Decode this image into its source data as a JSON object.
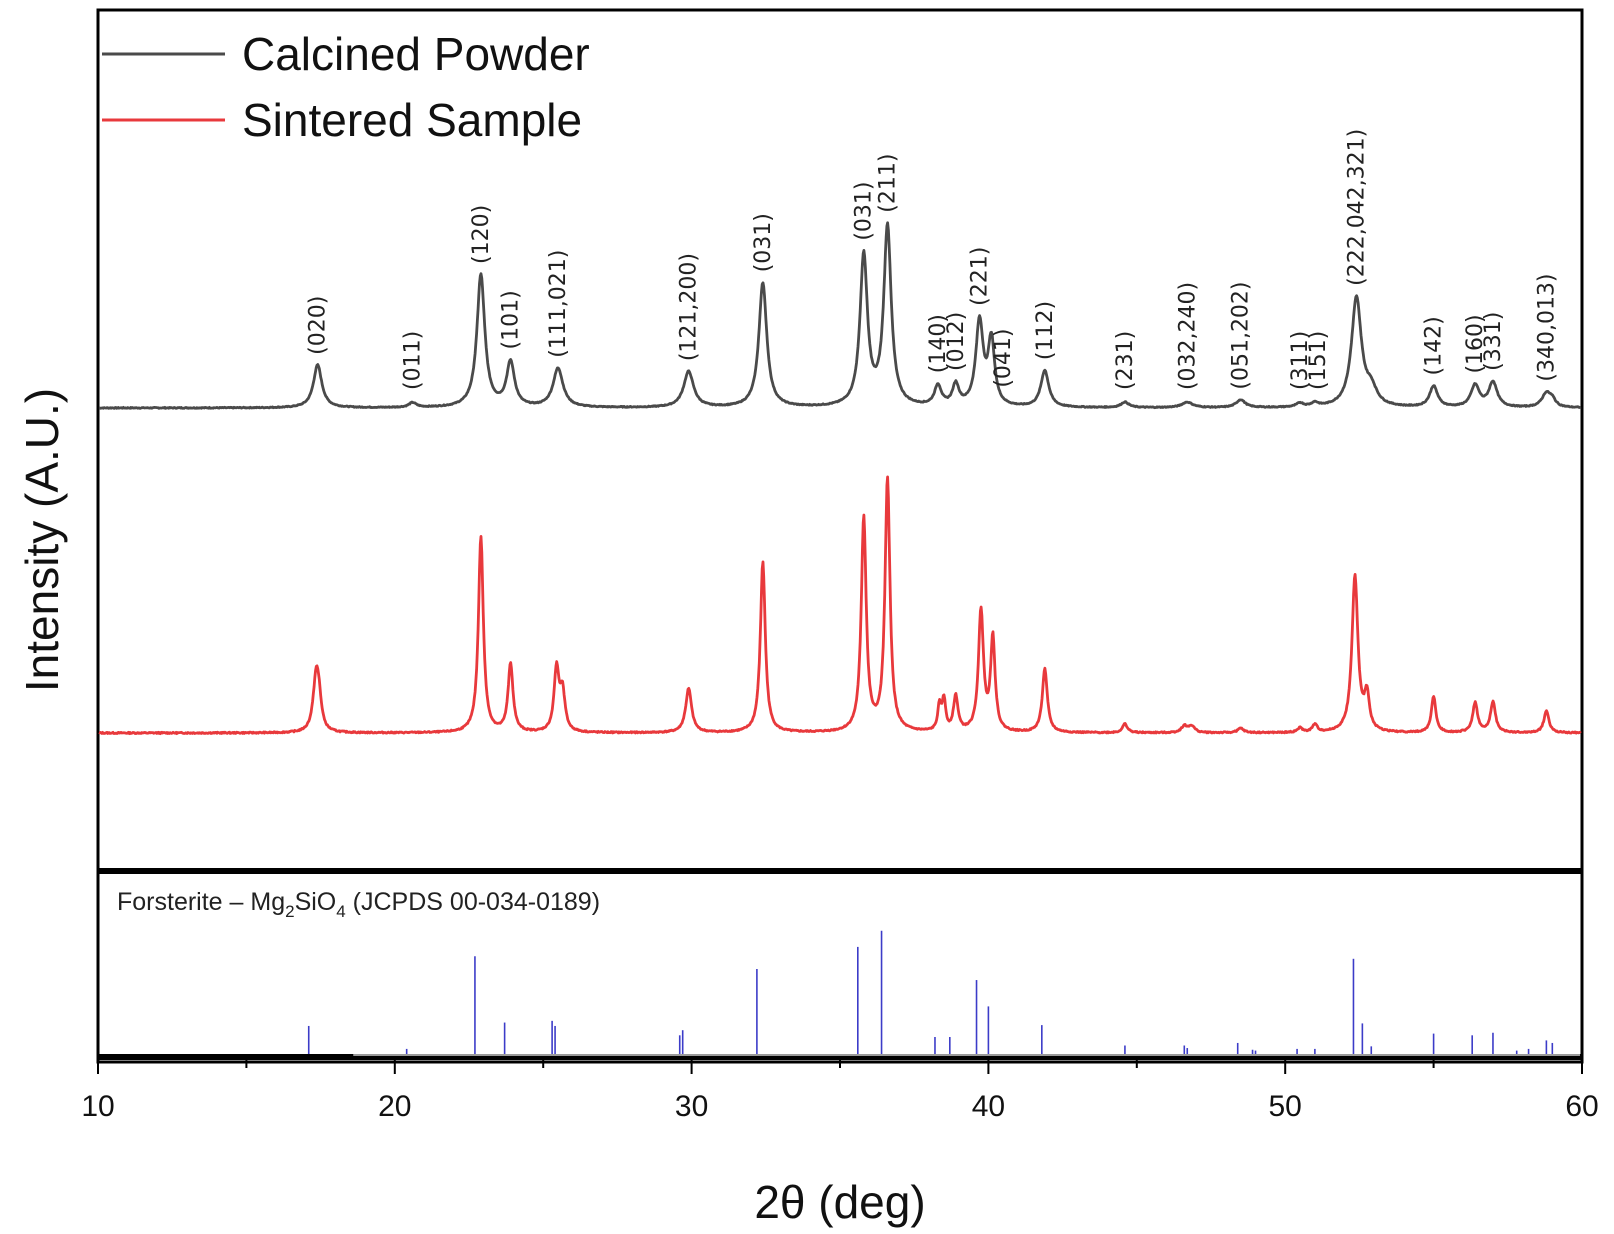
{
  "chart_data": {
    "type": "line",
    "xlabel": "2θ (deg)",
    "ylabel": "Intensity (A.U.)",
    "xlim": [
      10,
      60
    ],
    "xticks": [
      10,
      20,
      30,
      40,
      50,
      60
    ],
    "grid": false,
    "legend_position": "top-left",
    "colors": {
      "calcined": "#4a4a4a",
      "sintered": "#e8393c",
      "reference": "#3c3cc8",
      "frame": "#000000"
    },
    "series": [
      {
        "name": "Calcined Powder",
        "baseline": 0,
        "peaks": [
          {
            "x": 17.4,
            "h": 55,
            "w": 0.17
          },
          {
            "x": 20.6,
            "h": 6,
            "w": 0.15
          },
          {
            "x": 22.9,
            "h": 170,
            "w": 0.16
          },
          {
            "x": 23.9,
            "h": 57,
            "w": 0.16
          },
          {
            "x": 25.5,
            "h": 50,
            "w": 0.2
          },
          {
            "x": 29.9,
            "h": 46,
            "w": 0.2
          },
          {
            "x": 32.4,
            "h": 160,
            "w": 0.16
          },
          {
            "x": 35.8,
            "h": 193,
            "w": 0.15
          },
          {
            "x": 36.6,
            "h": 230,
            "w": 0.15
          },
          {
            "x": 38.3,
            "h": 26,
            "w": 0.14
          },
          {
            "x": 38.9,
            "h": 27,
            "w": 0.13
          },
          {
            "x": 39.7,
            "h": 108,
            "w": 0.15
          },
          {
            "x": 40.1,
            "h": 83,
            "w": 0.13
          },
          {
            "x": 41.9,
            "h": 47,
            "w": 0.16
          },
          {
            "x": 44.6,
            "h": 7,
            "w": 0.16
          },
          {
            "x": 46.7,
            "h": 7,
            "w": 0.22
          },
          {
            "x": 48.5,
            "h": 10,
            "w": 0.18
          },
          {
            "x": 50.5,
            "h": 5,
            "w": 0.14
          },
          {
            "x": 51.0,
            "h": 5,
            "w": 0.14
          },
          {
            "x": 52.4,
            "h": 140,
            "w": 0.2
          },
          {
            "x": 52.9,
            "h": 20,
            "w": 0.22
          },
          {
            "x": 55.0,
            "h": 27,
            "w": 0.16
          },
          {
            "x": 56.4,
            "h": 28,
            "w": 0.17
          },
          {
            "x": 57.0,
            "h": 32,
            "w": 0.17
          },
          {
            "x": 58.8,
            "h": 18,
            "w": 0.18
          },
          {
            "x": 59.0,
            "h": 8,
            "w": 0.13
          }
        ]
      },
      {
        "name": "Sintered Sample",
        "baseline": 0,
        "peaks": [
          {
            "x": 17.35,
            "h": 50,
            "w": 0.12
          },
          {
            "x": 17.45,
            "h": 20,
            "w": 0.1
          },
          {
            "x": 22.9,
            "h": 178,
            "w": 0.1
          },
          {
            "x": 23.9,
            "h": 62,
            "w": 0.1
          },
          {
            "x": 25.45,
            "h": 57,
            "w": 0.1
          },
          {
            "x": 25.65,
            "h": 35,
            "w": 0.1
          },
          {
            "x": 29.9,
            "h": 40,
            "w": 0.12
          },
          {
            "x": 32.4,
            "h": 155,
            "w": 0.1
          },
          {
            "x": 35.8,
            "h": 195,
            "w": 0.1
          },
          {
            "x": 36.6,
            "h": 230,
            "w": 0.1
          },
          {
            "x": 38.35,
            "h": 22,
            "w": 0.07
          },
          {
            "x": 38.5,
            "h": 28,
            "w": 0.07
          },
          {
            "x": 38.9,
            "h": 32,
            "w": 0.09
          },
          {
            "x": 39.75,
            "h": 110,
            "w": 0.1
          },
          {
            "x": 40.15,
            "h": 85,
            "w": 0.09
          },
          {
            "x": 41.9,
            "h": 58,
            "w": 0.1
          },
          {
            "x": 44.6,
            "h": 8,
            "w": 0.1
          },
          {
            "x": 46.6,
            "h": 6,
            "w": 0.12
          },
          {
            "x": 46.85,
            "h": 6,
            "w": 0.12
          },
          {
            "x": 48.5,
            "h": 4,
            "w": 0.12
          },
          {
            "x": 50.5,
            "h": 4,
            "w": 0.1
          },
          {
            "x": 51.0,
            "h": 7,
            "w": 0.1
          },
          {
            "x": 52.35,
            "h": 142,
            "w": 0.12
          },
          {
            "x": 52.75,
            "h": 32,
            "w": 0.1
          },
          {
            "x": 55.0,
            "h": 33,
            "w": 0.09
          },
          {
            "x": 56.4,
            "h": 27,
            "w": 0.1
          },
          {
            "x": 57.0,
            "h": 28,
            "w": 0.1
          },
          {
            "x": 58.8,
            "h": 20,
            "w": 0.1
          }
        ]
      }
    ],
    "reference": {
      "caption_prefix": "Forsterite – Mg",
      "caption_sub1": "2",
      "caption_mid": "SiO",
      "caption_sub2": "4",
      "caption_suffix": " (JCPDS 00-034-0189)",
      "lines": [
        {
          "x": 17.1,
          "h": 33
        },
        {
          "x": 20.4,
          "h": 6
        },
        {
          "x": 22.7,
          "h": 115
        },
        {
          "x": 23.7,
          "h": 37
        },
        {
          "x": 25.3,
          "h": 39
        },
        {
          "x": 25.4,
          "h": 33
        },
        {
          "x": 29.6,
          "h": 22
        },
        {
          "x": 29.7,
          "h": 28
        },
        {
          "x": 32.2,
          "h": 100
        },
        {
          "x": 35.6,
          "h": 126
        },
        {
          "x": 36.4,
          "h": 145
        },
        {
          "x": 38.2,
          "h": 20
        },
        {
          "x": 38.7,
          "h": 20
        },
        {
          "x": 39.6,
          "h": 87
        },
        {
          "x": 40.0,
          "h": 56
        },
        {
          "x": 41.8,
          "h": 34
        },
        {
          "x": 44.6,
          "h": 10
        },
        {
          "x": 46.6,
          "h": 10
        },
        {
          "x": 46.7,
          "h": 7
        },
        {
          "x": 48.4,
          "h": 13
        },
        {
          "x": 48.9,
          "h": 5
        },
        {
          "x": 49.0,
          "h": 4
        },
        {
          "x": 50.4,
          "h": 6
        },
        {
          "x": 51.0,
          "h": 6
        },
        {
          "x": 52.3,
          "h": 112
        },
        {
          "x": 52.6,
          "h": 36
        },
        {
          "x": 52.9,
          "h": 9
        },
        {
          "x": 55.0,
          "h": 24
        },
        {
          "x": 56.3,
          "h": 22
        },
        {
          "x": 57.0,
          "h": 25
        },
        {
          "x": 57.8,
          "h": 4
        },
        {
          "x": 58.2,
          "h": 6
        },
        {
          "x": 58.8,
          "h": 16
        },
        {
          "x": 59.0,
          "h": 13
        }
      ]
    },
    "annotations": [
      {
        "text": "(020)",
        "x": 17.4
      },
      {
        "text": "(011)",
        "x": 20.6
      },
      {
        "text": "(120)",
        "x": 22.9
      },
      {
        "text": "(101)",
        "x": 23.9
      },
      {
        "text": "(111,021)",
        "x": 25.5
      },
      {
        "text": "(121,200)",
        "x": 29.9
      },
      {
        "text": "(031)",
        "x": 32.4
      },
      {
        "text": "(031)",
        "x": 35.8
      },
      {
        "text": "(211)",
        "x": 36.6
      },
      {
        "text": "(140)",
        "x": 38.3
      },
      {
        "text": "(012)",
        "x": 38.9
      },
      {
        "text": "(221)",
        "x": 39.7
      },
      {
        "text": "(041)",
        "x": 40.5
      },
      {
        "text": "(112)",
        "x": 41.9
      },
      {
        "text": "(231)",
        "x": 44.6
      },
      {
        "text": "(032,240)",
        "x": 46.7
      },
      {
        "text": "(051,202)",
        "x": 48.5
      },
      {
        "text": "(311)",
        "x": 50.5
      },
      {
        "text": "(151)",
        "x": 51.1
      },
      {
        "text": "(222,042,321)",
        "x": 52.4
      },
      {
        "text": "(142)",
        "x": 55.0
      },
      {
        "text": "(160)",
        "x": 56.4
      },
      {
        "text": "(331)",
        "x": 57.0
      },
      {
        "text": "(340,013)",
        "x": 58.8
      }
    ]
  }
}
